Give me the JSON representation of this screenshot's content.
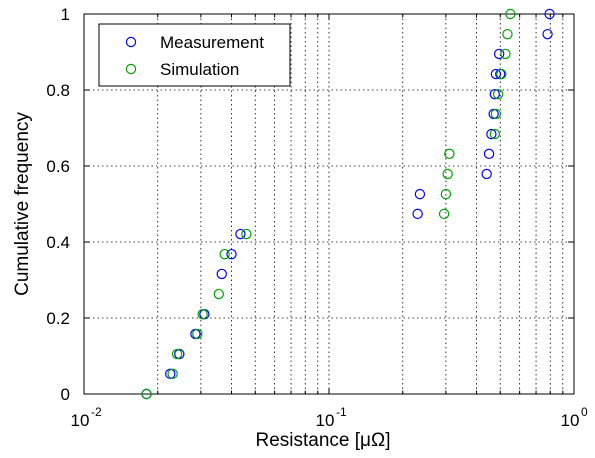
{
  "chart_data": {
    "type": "scatter",
    "title": "",
    "xlabel": "Resistance [μΩ]",
    "ylabel": "Cumulative frequency",
    "xscale": "log",
    "xlim": [
      0.01,
      1
    ],
    "ylim": [
      0,
      1
    ],
    "grid": true,
    "legend_position": "top-left",
    "x_ticks": [
      {
        "base": "10",
        "exp": "-2"
      },
      {
        "base": "10",
        "exp": "-1"
      },
      {
        "base": "10",
        "exp": "0"
      }
    ],
    "y_ticks": [
      "0",
      "0.2",
      "0.4",
      "0.6",
      "0.8",
      "1"
    ],
    "series": [
      {
        "name": "Measurement",
        "color": "#0000ff",
        "x": [
          0.018,
          0.0225,
          0.0245,
          0.0285,
          0.031,
          0.0365,
          0.04,
          0.0435,
          0.23,
          0.235,
          0.44,
          0.45,
          0.46,
          0.47,
          0.475,
          0.48,
          0.495,
          0.5,
          0.78,
          0.795
        ],
        "y": [
          0.0,
          0.053,
          0.105,
          0.158,
          0.21,
          0.316,
          0.368,
          0.421,
          0.474,
          0.526,
          0.579,
          0.632,
          0.684,
          0.737,
          0.789,
          0.842,
          0.895,
          0.842,
          0.947,
          1.0
        ]
      },
      {
        "name": "Simulation",
        "color": "#00a000",
        "x": [
          0.018,
          0.023,
          0.024,
          0.029,
          0.0305,
          0.0355,
          0.0375,
          0.046,
          0.295,
          0.3,
          0.305,
          0.31,
          0.475,
          0.48,
          0.49,
          0.505,
          0.525,
          0.535,
          0.55
        ],
        "y": [
          0.0,
          0.053,
          0.105,
          0.158,
          0.21,
          0.263,
          0.368,
          0.421,
          0.474,
          0.526,
          0.579,
          0.632,
          0.684,
          0.737,
          0.789,
          0.842,
          0.895,
          0.947,
          1.0
        ]
      }
    ]
  }
}
